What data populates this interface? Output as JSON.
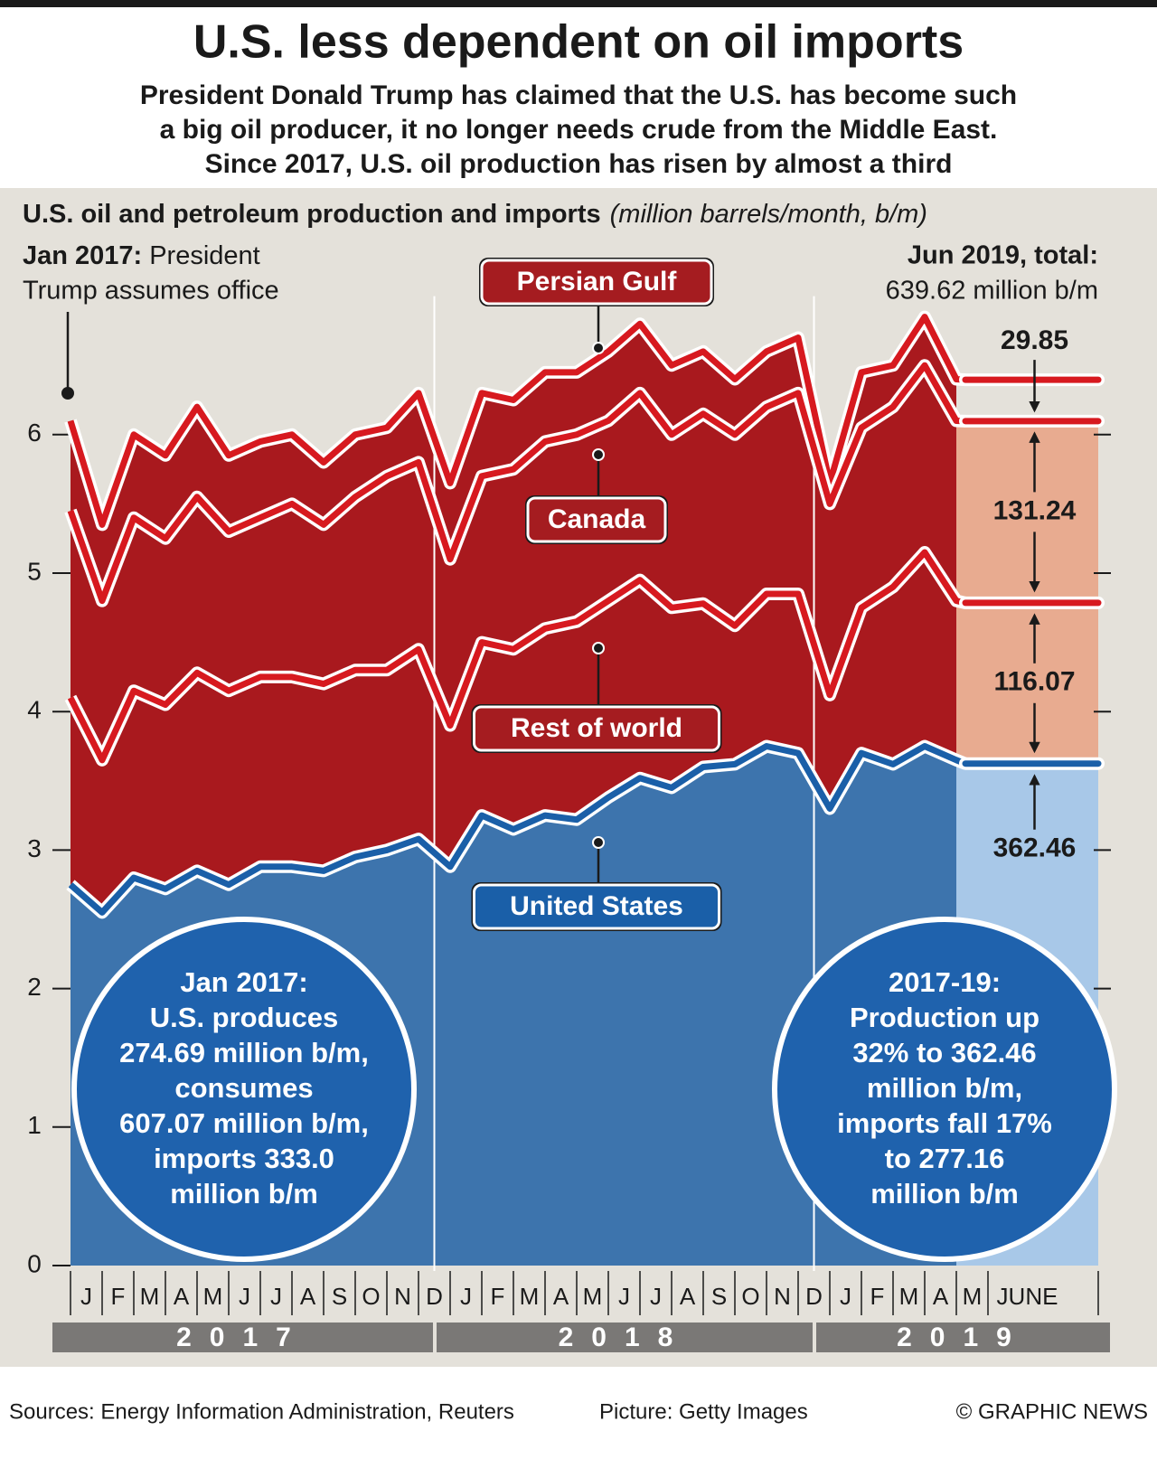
{
  "header": {
    "title": "U.S. less dependent on oil imports",
    "subtitle": [
      "President Donald Trump has claimed that the U.S. has become such",
      "a big oil producer, it no longer needs crude from the Middle East.",
      "Since 2017, U.S. oil production has risen by almost a third"
    ]
  },
  "chart_data": {
    "type": "stacked-area",
    "title": "U.S. oil and petroleum production and imports",
    "unit_note": "(million barrels/month, b/m)",
    "categories": [
      "J",
      "F",
      "M",
      "A",
      "M",
      "J",
      "J",
      "A",
      "S",
      "O",
      "N",
      "D",
      "J",
      "F",
      "M",
      "A",
      "M",
      "J",
      "J",
      "A",
      "S",
      "O",
      "N",
      "D",
      "J",
      "F",
      "M",
      "A",
      "M",
      "JUNE"
    ],
    "years": [
      "2017",
      "2018",
      "2019"
    ],
    "ylim": [
      0,
      7
    ],
    "yticks": [
      0,
      1,
      2,
      3,
      4,
      5,
      6
    ],
    "series": [
      {
        "name": "United States",
        "color": "#1a5fa8",
        "area_color": "#3d74ad",
        "values": [
          2.75,
          2.55,
          2.8,
          2.72,
          2.85,
          2.75,
          2.88,
          2.88,
          2.85,
          2.95,
          3.0,
          3.08,
          2.88,
          3.25,
          3.15,
          3.25,
          3.22,
          3.38,
          3.52,
          3.45,
          3.6,
          3.62,
          3.75,
          3.7,
          3.3,
          3.7,
          3.62,
          3.75,
          3.65,
          3.6246
        ],
        "value_labels": [
          null,
          null,
          null,
          null,
          null,
          null,
          null,
          null,
          null,
          null,
          null,
          null,
          null,
          null,
          null,
          null,
          null,
          null,
          null,
          null,
          null,
          null,
          null,
          null,
          null,
          null,
          null,
          null,
          null,
          "362.46"
        ]
      },
      {
        "name": "Rest of world",
        "color": "#d7191f",
        "area_color": "#a9191e",
        "values": [
          1.35,
          1.1,
          1.35,
          1.33,
          1.43,
          1.4,
          1.37,
          1.37,
          1.35,
          1.35,
          1.3,
          1.37,
          1.02,
          1.25,
          1.3,
          1.35,
          1.43,
          1.42,
          1.43,
          1.3,
          1.18,
          1.0,
          1.1,
          1.15,
          0.82,
          1.05,
          1.28,
          1.4,
          1.15,
          1.1607
        ],
        "value_labels": [
          null,
          null,
          null,
          null,
          null,
          null,
          null,
          null,
          null,
          null,
          null,
          null,
          null,
          null,
          null,
          null,
          null,
          null,
          null,
          null,
          null,
          null,
          null,
          null,
          null,
          null,
          null,
          null,
          null,
          "116.07"
        ]
      },
      {
        "name": "Canada",
        "color": "#d7191f",
        "area_color": "#a9191e",
        "values": [
          1.35,
          1.15,
          1.25,
          1.2,
          1.27,
          1.15,
          1.15,
          1.25,
          1.15,
          1.25,
          1.4,
          1.35,
          1.2,
          1.2,
          1.3,
          1.35,
          1.35,
          1.3,
          1.35,
          1.25,
          1.37,
          1.38,
          1.35,
          1.45,
          1.38,
          1.3,
          1.3,
          1.35,
          1.3,
          1.3124
        ],
        "value_labels": [
          null,
          null,
          null,
          null,
          null,
          null,
          null,
          null,
          null,
          null,
          null,
          null,
          null,
          null,
          null,
          null,
          null,
          null,
          null,
          null,
          null,
          null,
          null,
          null,
          null,
          null,
          null,
          null,
          null,
          "131.24"
        ]
      },
      {
        "name": "Persian Gulf",
        "color": "#d7191f",
        "area_color": "#a9191e",
        "values": [
          0.65,
          0.55,
          0.6,
          0.6,
          0.65,
          0.55,
          0.55,
          0.5,
          0.45,
          0.45,
          0.35,
          0.5,
          0.55,
          0.6,
          0.5,
          0.5,
          0.45,
          0.5,
          0.5,
          0.5,
          0.45,
          0.4,
          0.4,
          0.4,
          0.15,
          0.4,
          0.3,
          0.35,
          0.3,
          0.2985
        ],
        "value_labels": [
          null,
          null,
          null,
          null,
          null,
          null,
          null,
          null,
          null,
          null,
          null,
          null,
          null,
          null,
          null,
          null,
          null,
          null,
          null,
          null,
          null,
          null,
          null,
          null,
          null,
          null,
          null,
          null,
          null,
          "29.85"
        ]
      }
    ],
    "note_left": [
      "Jan 2017:",
      "President",
      "Trump assumes office"
    ],
    "note_right": [
      "Jun 2019, total:",
      "639.62 million b/m"
    ],
    "circle_left": [
      "Jan 2017:",
      "U.S. produces",
      "274.69 million b/m,",
      "consumes",
      "607.07 million b/m,",
      "imports 333.0",
      "million b/m"
    ],
    "circle_right": [
      "2017-19:",
      "Production up",
      "32% to 362.46",
      "million b/m,",
      "imports fall 17%",
      "to 277.16",
      "million b/m"
    ]
  },
  "footer": {
    "sources": "Sources: Energy Information Administration, Reuters",
    "picture": "Picture: Getty Images",
    "credit": "© GRAPHIC NEWS"
  }
}
